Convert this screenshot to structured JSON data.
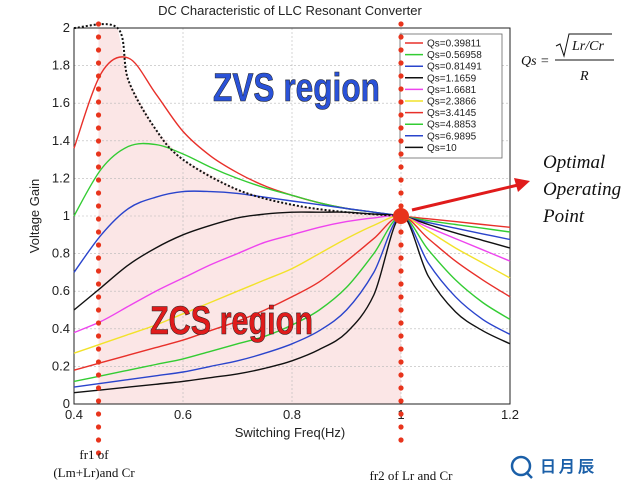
{
  "chart_data": {
    "type": "line",
    "title": "DC Characteristic of LLC Resonant Converter",
    "xlabel": "Switching Freq(Hz)",
    "ylabel": "Voltage Gain",
    "xlim": [
      0.4,
      1.2
    ],
    "ylim": [
      0,
      2
    ],
    "x_ticks": [
      0.4,
      0.6,
      0.8,
      1,
      1.2
    ],
    "y_ticks": [
      0,
      0.2,
      0.4,
      0.6,
      0.8,
      1,
      1.2,
      1.4,
      1.6,
      1.8,
      2
    ],
    "grid": true,
    "legend_position": "top-right",
    "x": [
      0.4,
      0.45,
      0.5,
      0.55,
      0.6,
      0.65,
      0.7,
      0.75,
      0.8,
      0.85,
      0.9,
      0.95,
      1.0,
      1.05,
      1.1,
      1.15,
      1.2
    ],
    "series": [
      {
        "name": "Qs=0.39811",
        "color": "#e8302a",
        "values": [
          1.36,
          1.76,
          1.84,
          1.65,
          1.45,
          1.32,
          1.23,
          1.16,
          1.11,
          1.07,
          1.04,
          1.02,
          1.0,
          0.985,
          0.97,
          0.955,
          0.94
        ]
      },
      {
        "name": "Qs=0.56958",
        "color": "#33cc33",
        "values": [
          1.0,
          1.25,
          1.37,
          1.38,
          1.33,
          1.26,
          1.2,
          1.15,
          1.11,
          1.07,
          1.04,
          1.02,
          1.0,
          0.975,
          0.955,
          0.935,
          0.915
        ]
      },
      {
        "name": "Qs=0.81491",
        "color": "#2a44cc",
        "values": [
          0.7,
          0.9,
          1.04,
          1.1,
          1.13,
          1.13,
          1.12,
          1.1,
          1.08,
          1.06,
          1.04,
          1.02,
          1.0,
          0.965,
          0.935,
          0.905,
          0.875
        ]
      },
      {
        "name": "Qs=1.1659",
        "color": "#111111",
        "values": [
          0.5,
          0.62,
          0.74,
          0.83,
          0.9,
          0.95,
          0.99,
          1.01,
          1.02,
          1.02,
          1.02,
          1.01,
          1.0,
          0.955,
          0.91,
          0.87,
          0.83
        ]
      },
      {
        "name": "Qs=1.6681",
        "color": "#ee44ee",
        "values": [
          0.38,
          0.44,
          0.52,
          0.6,
          0.67,
          0.74,
          0.8,
          0.86,
          0.9,
          0.94,
          0.97,
          0.99,
          1.0,
          0.94,
          0.88,
          0.82,
          0.76
        ]
      },
      {
        "name": "Qs=2.3866",
        "color": "#f2e22a",
        "values": [
          0.27,
          0.32,
          0.37,
          0.42,
          0.48,
          0.54,
          0.6,
          0.66,
          0.72,
          0.8,
          0.88,
          0.95,
          1.0,
          0.92,
          0.83,
          0.75,
          0.67
        ]
      },
      {
        "name": "Qs=3.4145",
        "color": "#e8302a",
        "values": [
          0.18,
          0.22,
          0.26,
          0.3,
          0.34,
          0.39,
          0.44,
          0.5,
          0.57,
          0.65,
          0.76,
          0.88,
          1.0,
          0.88,
          0.76,
          0.66,
          0.57
        ]
      },
      {
        "name": "Qs=4.8853",
        "color": "#33cc33",
        "values": [
          0.12,
          0.15,
          0.18,
          0.21,
          0.24,
          0.28,
          0.32,
          0.36,
          0.42,
          0.5,
          0.62,
          0.8,
          1.0,
          0.82,
          0.66,
          0.54,
          0.45
        ]
      },
      {
        "name": "Qs=6.9895",
        "color": "#2a44cc",
        "values": [
          0.09,
          0.11,
          0.13,
          0.15,
          0.17,
          0.2,
          0.23,
          0.27,
          0.32,
          0.39,
          0.5,
          0.7,
          1.0,
          0.75,
          0.57,
          0.45,
          0.37
        ]
      },
      {
        "name": "Qs=10",
        "color": "#111111",
        "values": [
          0.06,
          0.075,
          0.09,
          0.105,
          0.12,
          0.14,
          0.16,
          0.19,
          0.23,
          0.29,
          0.38,
          0.58,
          1.0,
          0.68,
          0.49,
          0.39,
          0.32
        ]
      }
    ],
    "boundary": {
      "name": "ZVS/ZCS boundary",
      "x": [
        0.4,
        0.48,
        0.5,
        0.55,
        0.6,
        0.7,
        0.8,
        0.9,
        1.0
      ],
      "values": [
        2.0,
        2.0,
        1.72,
        1.46,
        1.3,
        1.14,
        1.06,
        1.02,
        1.0
      ]
    },
    "region_labels": {
      "zvs": "ZVS region",
      "zcs": "ZCS region"
    },
    "markers": {
      "fr1": {
        "x": 0.445,
        "label_line1": "fr1 of",
        "label_line2": "(Lm+Lr)and Cr"
      },
      "fr2": {
        "x": 1.0,
        "label": "fr2 of Lr and Cr"
      },
      "optimal_point": {
        "x": 1.0,
        "y": 1.0,
        "label_lines": [
          "Optimal",
          "Operating",
          "Point"
        ]
      }
    },
    "formula": {
      "lhs": "Qs =",
      "numerator": "Lr/Cr",
      "denominator": "R"
    }
  },
  "colors": {
    "zcs_fill": "#fbe6e6",
    "zvs_text": "#2a52d8",
    "zcs_text": "#e01b1b",
    "marker_dot": "#e8341c",
    "arrow": "#e01b1b"
  },
  "logo": {
    "text": "日月辰"
  }
}
